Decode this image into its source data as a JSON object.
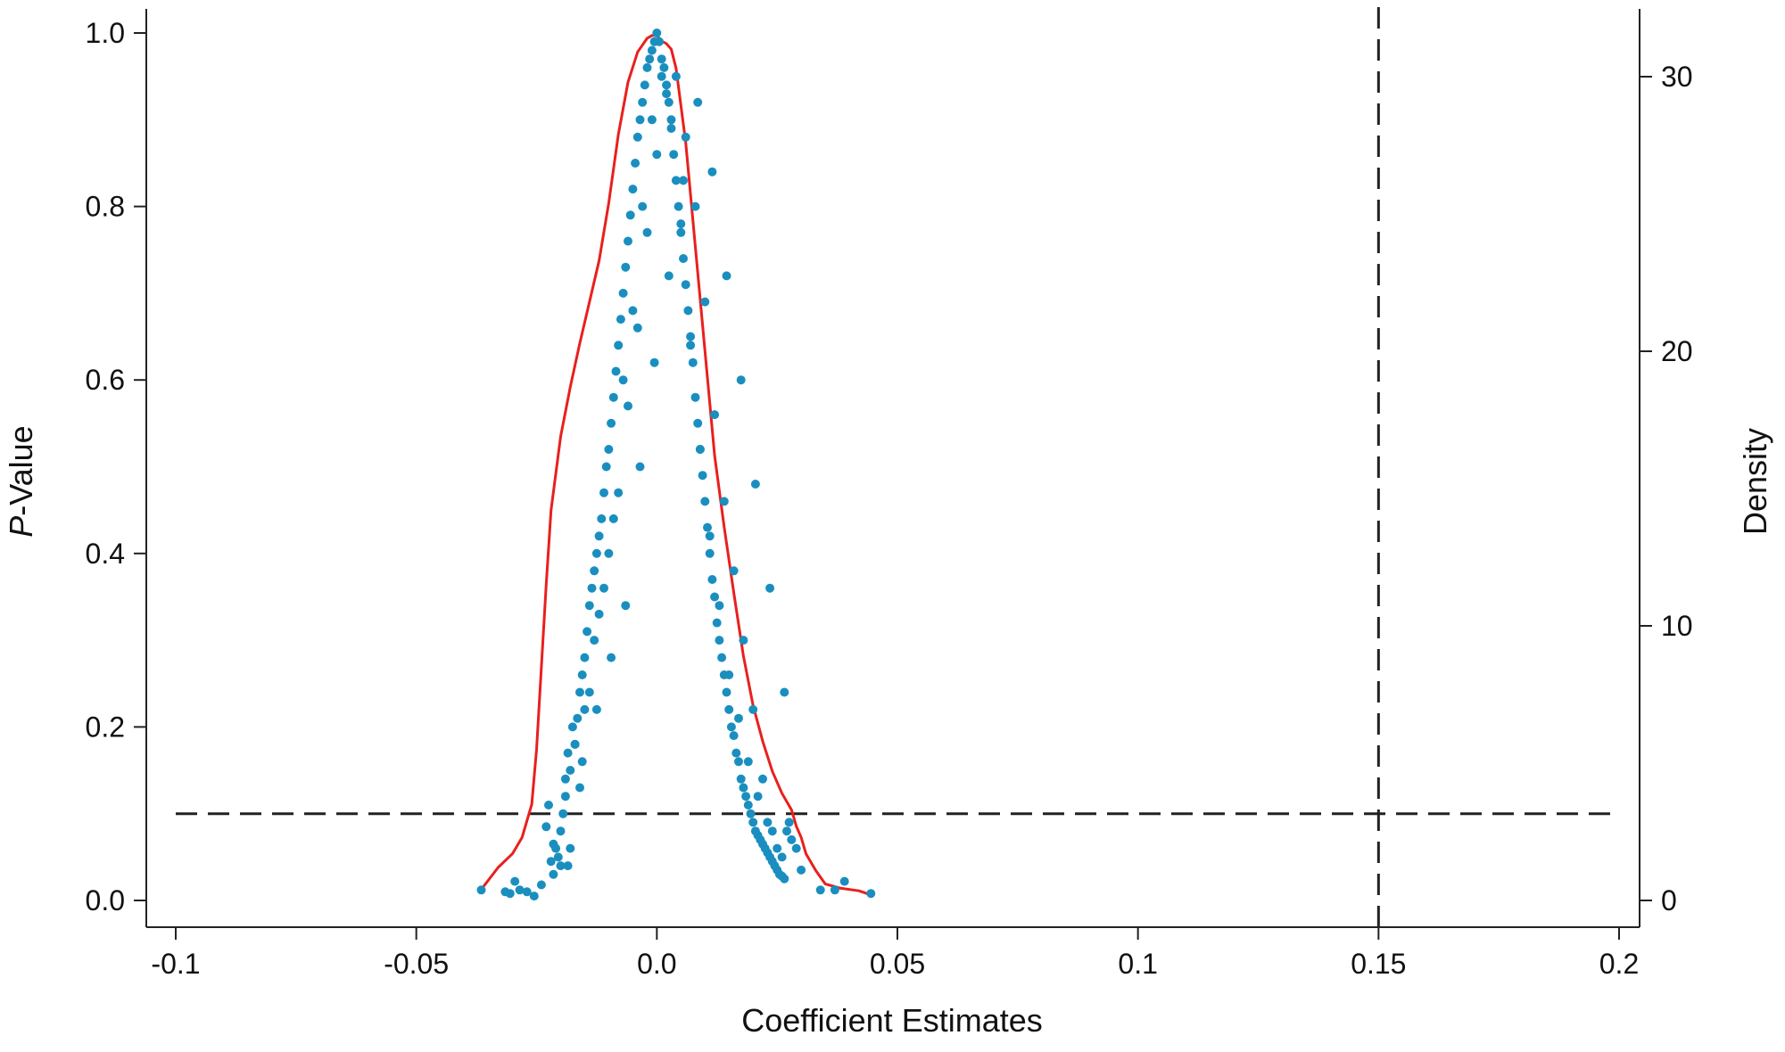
{
  "chart_data": {
    "type": "scatter",
    "xlabel": "Coefficient Estimates",
    "ylabel_left_italic": "P",
    "ylabel_left_rest": "-Value",
    "ylabel_right": "Density",
    "xlim": [
      -0.1,
      0.2
    ],
    "ylim_left": [
      0,
      1
    ],
    "ylim_right": [
      0,
      30
    ],
    "x_ticks": [
      -0.1,
      -0.05,
      0.0,
      0.05,
      0.1,
      0.15,
      0.2
    ],
    "x_tick_labels": [
      "-0.1",
      "-0.05",
      "0.0",
      "0.05",
      "0.1",
      "0.15",
      "0.2"
    ],
    "y_left_ticks": [
      0,
      0.2,
      0.4,
      0.6,
      0.8,
      1.0
    ],
    "y_left_tick_labels": [
      "0.0",
      "0.2",
      "0.4",
      "0.6",
      "0.8",
      "1.0"
    ],
    "y_right_ticks": [
      0,
      10,
      20,
      30
    ],
    "y_right_tick_labels": [
      "0",
      "10",
      "20",
      "30"
    ],
    "grid": false,
    "reference_lines": {
      "hline_p": 0.1,
      "vline_x": 0.15
    },
    "colors": {
      "points": "#1a8fbf",
      "density": "#e8201e",
      "reference": "#222222"
    },
    "density_curve": {
      "x": [
        -0.0365,
        -0.033,
        -0.03,
        -0.028,
        -0.026,
        -0.025,
        -0.024,
        -0.023,
        -0.022,
        -0.02,
        -0.018,
        -0.016,
        -0.014,
        -0.012,
        -0.01,
        -0.008,
        -0.006,
        -0.004,
        -0.002,
        -0.001,
        0.0,
        0.001,
        0.002,
        0.003,
        0.004,
        0.006,
        0.008,
        0.01,
        0.012,
        0.014,
        0.016,
        0.018,
        0.02,
        0.022,
        0.024,
        0.026,
        0.028,
        0.029,
        0.03,
        0.031,
        0.033,
        0.035,
        0.038,
        0.042,
        0.0445
      ],
      "y": [
        0.4,
        1.2,
        1.7,
        2.3,
        3.5,
        5.5,
        8.5,
        11.5,
        14.2,
        16.9,
        18.7,
        20.3,
        21.8,
        23.3,
        25.4,
        27.9,
        29.8,
        30.9,
        31.4,
        31.5,
        31.5,
        31.3,
        31.2,
        31.0,
        30.3,
        27.6,
        23.8,
        20.0,
        16.2,
        13.6,
        11.2,
        8.9,
        7.1,
        5.8,
        4.7,
        3.9,
        3.3,
        2.7,
        2.3,
        1.7,
        1.1,
        0.6,
        0.45,
        0.35,
        0.2
      ]
    },
    "scatter_points": {
      "x": [
        -0.0365,
        -0.0315,
        -0.0305,
        -0.0295,
        -0.0285,
        -0.027,
        -0.0255,
        -0.024,
        -0.023,
        -0.0225,
        -0.022,
        -0.0215,
        -0.021,
        -0.0205,
        -0.02,
        -0.0195,
        -0.019,
        -0.0185,
        -0.018,
        -0.0175,
        -0.017,
        -0.0165,
        -0.016,
        -0.0155,
        -0.015,
        -0.0145,
        -0.014,
        -0.0135,
        -0.013,
        -0.0125,
        -0.012,
        -0.0115,
        -0.011,
        -0.0105,
        -0.01,
        -0.0095,
        -0.009,
        -0.0085,
        -0.008,
        -0.0075,
        -0.007,
        -0.0065,
        -0.006,
        -0.0055,
        -0.005,
        -0.0045,
        -0.004,
        -0.0035,
        -0.003,
        -0.0025,
        -0.002,
        -0.0015,
        -0.001,
        -0.0005,
        0.0,
        0.0005,
        0.001,
        0.0015,
        0.002,
        0.0025,
        0.003,
        0.0035,
        0.004,
        0.0045,
        0.005,
        0.0055,
        0.006,
        0.0065,
        0.007,
        0.0075,
        0.008,
        0.0085,
        0.009,
        0.0095,
        0.01,
        0.0105,
        0.011,
        0.0115,
        0.012,
        0.0125,
        0.013,
        0.0135,
        0.014,
        0.0145,
        0.015,
        0.0155,
        0.016,
        0.0165,
        0.017,
        0.0175,
        0.018,
        0.0185,
        0.019,
        0.0195,
        0.02,
        0.0205,
        0.021,
        0.0215,
        0.022,
        0.0225,
        0.023,
        0.0235,
        0.024,
        0.0245,
        0.025,
        0.0255,
        0.026,
        0.0265,
        0.027,
        0.0275,
        0.028,
        0.029,
        0.03,
        0.034,
        0.037,
        0.039,
        0.0445,
        -0.019,
        -0.017,
        -0.015,
        -0.013,
        -0.011,
        -0.009,
        -0.007,
        -0.005,
        -0.003,
        -0.001,
        0.001,
        0.003,
        0.005,
        0.007,
        0.009,
        0.011,
        0.013,
        0.015,
        0.017,
        0.019,
        0.021,
        0.023,
        0.025,
        -0.02,
        -0.018,
        -0.016,
        -0.014,
        -0.012,
        -0.01,
        -0.008,
        -0.006,
        -0.004,
        -0.002,
        0.0,
        0.002,
        0.004,
        0.006,
        0.008,
        0.01,
        0.012,
        0.014,
        0.016,
        0.018,
        0.02,
        0.022,
        0.024,
        0.026,
        -0.0215,
        -0.0185,
        -0.0155,
        -0.0125,
        -0.0095,
        -0.0065,
        -0.0035,
        -0.0005,
        0.0025,
        0.0055,
        0.0085,
        0.0115,
        0.0145,
        0.0175,
        0.0205,
        0.0235,
        0.0265
      ],
      "p": [
        0.012,
        0.01,
        0.008,
        0.022,
        0.012,
        0.01,
        0.005,
        0.018,
        0.085,
        0.11,
        0.045,
        0.065,
        0.06,
        0.05,
        0.08,
        0.1,
        0.14,
        0.17,
        0.15,
        0.2,
        0.18,
        0.21,
        0.24,
        0.26,
        0.28,
        0.31,
        0.34,
        0.36,
        0.38,
        0.4,
        0.42,
        0.44,
        0.47,
        0.5,
        0.52,
        0.55,
        0.58,
        0.61,
        0.64,
        0.67,
        0.7,
        0.73,
        0.76,
        0.79,
        0.82,
        0.85,
        0.88,
        0.9,
        0.92,
        0.94,
        0.96,
        0.97,
        0.98,
        0.99,
        1.0,
        0.99,
        0.97,
        0.96,
        0.94,
        0.92,
        0.89,
        0.86,
        0.83,
        0.8,
        0.77,
        0.74,
        0.71,
        0.68,
        0.65,
        0.62,
        0.58,
        0.55,
        0.52,
        0.49,
        0.46,
        0.43,
        0.4,
        0.37,
        0.35,
        0.32,
        0.3,
        0.28,
        0.26,
        0.24,
        0.22,
        0.2,
        0.19,
        0.17,
        0.16,
        0.14,
        0.13,
        0.12,
        0.11,
        0.1,
        0.09,
        0.08,
        0.075,
        0.07,
        0.065,
        0.06,
        0.055,
        0.05,
        0.045,
        0.04,
        0.035,
        0.03,
        0.028,
        0.025,
        0.08,
        0.09,
        0.07,
        0.06,
        0.035,
        0.012,
        0.012,
        0.022,
        0.008,
        0.12,
        0.18,
        0.22,
        0.3,
        0.36,
        0.44,
        0.6,
        0.68,
        0.8,
        0.9,
        0.95,
        0.9,
        0.78,
        0.64,
        0.52,
        0.42,
        0.34,
        0.26,
        0.21,
        0.16,
        0.12,
        0.09,
        0.06,
        0.04,
        0.06,
        0.13,
        0.24,
        0.33,
        0.4,
        0.47,
        0.57,
        0.66,
        0.77,
        0.86,
        0.93,
        0.95,
        0.88,
        0.8,
        0.69,
        0.56,
        0.46,
        0.38,
        0.3,
        0.22,
        0.14,
        0.08,
        0.05,
        0.03,
        0.04,
        0.16,
        0.22,
        0.28,
        0.34,
        0.5,
        0.62,
        0.72,
        0.83,
        0.92,
        0.84,
        0.72,
        0.6,
        0.48,
        0.36,
        0.24,
        0.14,
        0.05
      ]
    }
  }
}
